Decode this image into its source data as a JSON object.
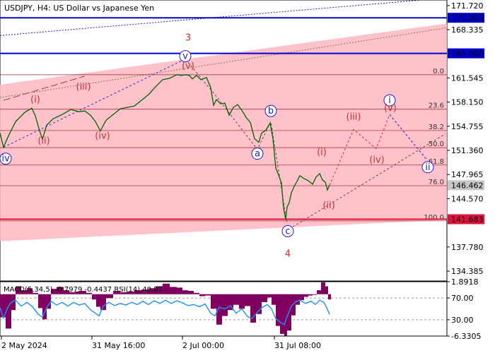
{
  "title": "USDJPY, H4:  US Dollar vs Japanese Yen",
  "indicator_label": "MACD(5,34,5) -0.7979 -0.4437 RSI(14) 40.87",
  "colors": {
    "channel": "#ffb6c1",
    "fib_line": "#8b0000",
    "level_line": "#0000cd",
    "support_line": "#dc143c",
    "price": "#006400",
    "wave_red": "#c83232",
    "wave_blue": "#1e1ec8",
    "macd_hist": "#800060",
    "rsi_line": "#1e90ff"
  },
  "chart_data": {
    "type": "line",
    "symbol": "USDJPY",
    "timeframe": "H4",
    "x_ticks": [
      "2 May 2024",
      "31 May 16:00",
      "2 Jul 00:00",
      "31 Jul 08:00"
    ],
    "ylim": [
      133.0,
      172.5
    ],
    "y_ticks": [
      171.72,
      168.335,
      161.545,
      158.15,
      154.755,
      151.36,
      147.965,
      144.57,
      137.78,
      134.385
    ],
    "y_tick_labels": [
      "171.720",
      "168.335",
      "161.545",
      "158.150",
      "154.755",
      "151.360",
      "147.965",
      "144.570",
      "137.780",
      "134.385"
    ],
    "current_price": 146.462,
    "current_price_label": "146.462",
    "key_levels": [
      {
        "value": 170.0,
        "label": "170.000",
        "kind": "resistance"
      },
      {
        "value": 165.0,
        "label": "165.000",
        "kind": "resistance"
      },
      {
        "value": 141.683,
        "label": "141.683",
        "kind": "support"
      }
    ],
    "fib_levels": [
      {
        "pct": "0.0",
        "value": 162.0
      },
      {
        "pct": "23.6",
        "value": 157.15
      },
      {
        "pct": "38.2",
        "value": 154.15
      },
      {
        "pct": "50.0",
        "value": 151.75
      },
      {
        "pct": "61.8",
        "value": 149.3
      },
      {
        "pct": "76.0",
        "value": 146.4
      },
      {
        "pct": "100.0",
        "value": 141.45
      }
    ],
    "price_series": [
      [
        0,
        153.8
      ],
      [
        5,
        151.8
      ],
      [
        12,
        153.4
      ],
      [
        22,
        155.4
      ],
      [
        35,
        156.7
      ],
      [
        45,
        157.3
      ],
      [
        50,
        156.2
      ],
      [
        56,
        154.1
      ],
      [
        60,
        152.9
      ],
      [
        66,
        154.9
      ],
      [
        75,
        155.8
      ],
      [
        88,
        156.4
      ],
      [
        100,
        157.1
      ],
      [
        112,
        156.8
      ],
      [
        120,
        156.9
      ],
      [
        128,
        156.3
      ],
      [
        135,
        155.4
      ],
      [
        142,
        154.1
      ],
      [
        150,
        155.6
      ],
      [
        160,
        156.4
      ],
      [
        170,
        157.2
      ],
      [
        180,
        157.4
      ],
      [
        190,
        157.6
      ],
      [
        200,
        158.4
      ],
      [
        210,
        159.2
      ],
      [
        220,
        160.3
      ],
      [
        230,
        161.3
      ],
      [
        240,
        161.5
      ],
      [
        250,
        162.0
      ],
      [
        256,
        161.9
      ],
      [
        262,
        162.0
      ],
      [
        268,
        161.9
      ],
      [
        272,
        161.4
      ],
      [
        278,
        161.9
      ],
      [
        284,
        161.3
      ],
      [
        292,
        161.6
      ],
      [
        298,
        160.2
      ],
      [
        302,
        157.7
      ],
      [
        306,
        158.5
      ],
      [
        312,
        157.9
      ],
      [
        318,
        158.0
      ],
      [
        324,
        156.3
      ],
      [
        330,
        157.4
      ],
      [
        336,
        157.8
      ],
      [
        342,
        157.0
      ],
      [
        348,
        156.0
      ],
      [
        354,
        155.3
      ],
      [
        360,
        153.0
      ],
      [
        366,
        152.5
      ],
      [
        370,
        153.8
      ],
      [
        376,
        154.2
      ],
      [
        382,
        155.2
      ],
      [
        386,
        153.0
      ],
      [
        390,
        148.9
      ],
      [
        394,
        147.9
      ],
      [
        398,
        146.8
      ],
      [
        401,
        143.2
      ],
      [
        404,
        141.68
      ],
      [
        406,
        143.4
      ],
      [
        409,
        144.0
      ],
      [
        412,
        145.4
      ],
      [
        416,
        146.3
      ],
      [
        420,
        147.0
      ],
      [
        424,
        147.8
      ],
      [
        430,
        147.4
      ],
      [
        436,
        147.1
      ],
      [
        442,
        146.6
      ],
      [
        447,
        147.6
      ],
      [
        452,
        148.1
      ],
      [
        456,
        147.2
      ],
      [
        460,
        146.9
      ],
      [
        463,
        145.8
      ],
      [
        466,
        146.46
      ]
    ],
    "waves_major": [
      {
        "label": "3",
        "time": 266,
        "price": 166.8
      },
      {
        "label": "4",
        "time": 407,
        "price": 136.4
      }
    ],
    "waves_minor": [
      {
        "label": "v",
        "time": 262,
        "price": 164.6,
        "circled": true
      },
      {
        "label": "b",
        "time": 383,
        "price": 156.9,
        "circled": true
      },
      {
        "label": "a",
        "time": 364,
        "price": 150.9,
        "circled": true
      },
      {
        "label": "c",
        "time": 407,
        "price": 140.0,
        "circled": true
      },
      {
        "label": "i",
        "time": 551,
        "price": 158.4,
        "circled": true
      },
      {
        "label": "ii",
        "time": 605,
        "price": 149.0,
        "circled": true
      },
      {
        "label": "iv",
        "time": 8,
        "price": 150.2,
        "circled": true
      }
    ],
    "waves_sub": [
      {
        "label": "(i)",
        "time": 50,
        "price": 158.1
      },
      {
        "label": "(ii)",
        "time": 62,
        "price": 152.3
      },
      {
        "label": "(iii)",
        "time": 118,
        "price": 159.9
      },
      {
        "label": "(iv)",
        "time": 145,
        "price": 153.0
      },
      {
        "label": "(v)",
        "time": 266,
        "price": 162.8
      },
      {
        "label": "(i)",
        "time": 455,
        "price": 150.7
      },
      {
        "label": "(ii)",
        "time": 465,
        "price": 143.2
      },
      {
        "label": "(iii)",
        "time": 500,
        "price": 155.7
      },
      {
        "label": "(iv)",
        "time": 533,
        "price": 149.6
      },
      {
        "label": "(v)",
        "time": 552,
        "price": 156.9
      }
    ],
    "wave_paths": {
      "past": [
        [
          262,
          164.2
        ],
        [
          304,
          159.2
        ],
        [
          364,
          151.5
        ],
        [
          383,
          155.4
        ],
        [
          406,
          141.0
        ]
      ],
      "forecast_red": [
        [
          466,
          146.46
        ],
        [
          500,
          154.3
        ],
        [
          532,
          151.6
        ],
        [
          551,
          156.4
        ],
        [
          604,
          150.0
        ]
      ],
      "forecast_blue": [
        [
          551,
          156.4
        ],
        [
          604,
          150.0
        ]
      ],
      "trend_blue": [
        [
          5,
          151.8
        ],
        [
          262,
          164.2
        ]
      ],
      "trend_lower": [
        [
          404,
          140.0
        ],
        [
          630,
          153.7
        ]
      ]
    },
    "indicator_ticks": [
      {
        "value": 1.8918,
        "label": "1.8918"
      },
      {
        "value": 70.0,
        "label": "70.00"
      },
      {
        "value": 30.0,
        "label": "30.00"
      },
      {
        "value": -6.3305,
        "label": "-6.3305"
      }
    ],
    "macd_hist": [
      [
        0,
        -3.5
      ],
      [
        8,
        -5.2
      ],
      [
        16,
        -2.4
      ],
      [
        22,
        1.2
      ],
      [
        30,
        0.6
      ],
      [
        38,
        0.9
      ],
      [
        46,
        0.2
      ],
      [
        54,
        -2.1
      ],
      [
        60,
        -3.8
      ],
      [
        66,
        -2.2
      ],
      [
        72,
        0.8
      ],
      [
        80,
        1.1
      ],
      [
        90,
        0.6
      ],
      [
        98,
        0.3
      ],
      [
        106,
        0.4
      ],
      [
        114,
        0.5
      ],
      [
        122,
        0.2
      ],
      [
        130,
        -0.8
      ],
      [
        136,
        -1.9
      ],
      [
        142,
        -2.4
      ],
      [
        150,
        -0.6
      ],
      [
        160,
        0.5
      ],
      [
        170,
        0.3
      ],
      [
        180,
        0.4
      ],
      [
        190,
        0.6
      ],
      [
        200,
        0.7
      ],
      [
        210,
        0.9
      ],
      [
        220,
        1.2
      ],
      [
        230,
        1.6
      ],
      [
        240,
        1.1
      ],
      [
        250,
        1.0
      ],
      [
        258,
        0.6
      ],
      [
        266,
        0.5
      ],
      [
        274,
        0.2
      ],
      [
        282,
        -0.3
      ],
      [
        290,
        -0.2
      ],
      [
        298,
        -2.2
      ],
      [
        306,
        -4.6
      ],
      [
        314,
        -3.3
      ],
      [
        322,
        -2.4
      ],
      [
        330,
        -1.6
      ],
      [
        338,
        -2.2
      ],
      [
        346,
        -1.8
      ],
      [
        354,
        -4.3
      ],
      [
        362,
        -3.0
      ],
      [
        370,
        -1.2
      ],
      [
        378,
        -0.5
      ],
      [
        384,
        -1.6
      ],
      [
        390,
        -4.8
      ],
      [
        396,
        -6.0
      ],
      [
        402,
        -6.3
      ],
      [
        406,
        -5.5
      ],
      [
        412,
        -3.2
      ],
      [
        418,
        -1.6
      ],
      [
        424,
        -0.9
      ],
      [
        430,
        -0.4
      ],
      [
        436,
        -0.2
      ],
      [
        442,
        0.0
      ],
      [
        448,
        0.6
      ],
      [
        454,
        1.8
      ],
      [
        460,
        1.2
      ],
      [
        464,
        -0.8
      ]
    ],
    "rsi": [
      [
        0,
        52
      ],
      [
        5,
        33
      ],
      [
        10,
        50
      ],
      [
        15,
        61
      ],
      [
        22,
        66
      ],
      [
        30,
        55
      ],
      [
        38,
        62
      ],
      [
        46,
        54
      ],
      [
        54,
        40
      ],
      [
        60,
        35
      ],
      [
        66,
        52
      ],
      [
        72,
        64
      ],
      [
        80,
        57
      ],
      [
        88,
        62
      ],
      [
        96,
        55
      ],
      [
        104,
        62
      ],
      [
        112,
        57
      ],
      [
        120,
        60
      ],
      [
        128,
        48
      ],
      [
        134,
        43
      ],
      [
        140,
        37
      ],
      [
        146,
        55
      ],
      [
        154,
        62
      ],
      [
        162,
        56
      ],
      [
        170,
        60
      ],
      [
        178,
        57
      ],
      [
        186,
        62
      ],
      [
        194,
        58
      ],
      [
        202,
        64
      ],
      [
        210,
        58
      ],
      [
        218,
        65
      ],
      [
        226,
        60
      ],
      [
        234,
        66
      ],
      [
        242,
        60
      ],
      [
        250,
        65
      ],
      [
        258,
        61
      ],
      [
        266,
        56
      ],
      [
        274,
        58
      ],
      [
        282,
        54
      ],
      [
        290,
        59
      ],
      [
        298,
        42
      ],
      [
        304,
        37
      ],
      [
        310,
        53
      ],
      [
        318,
        50
      ],
      [
        326,
        56
      ],
      [
        334,
        42
      ],
      [
        342,
        50
      ],
      [
        350,
        36
      ],
      [
        356,
        32
      ],
      [
        362,
        41
      ],
      [
        370,
        52
      ],
      [
        378,
        58
      ],
      [
        384,
        50
      ],
      [
        390,
        32
      ],
      [
        396,
        26
      ],
      [
        402,
        21
      ],
      [
        406,
        36
      ],
      [
        412,
        55
      ],
      [
        418,
        63
      ],
      [
        424,
        66
      ],
      [
        432,
        60
      ],
      [
        440,
        64
      ],
      [
        446,
        58
      ],
      [
        452,
        66
      ],
      [
        458,
        62
      ],
      [
        462,
        52
      ],
      [
        466,
        40
      ]
    ]
  }
}
